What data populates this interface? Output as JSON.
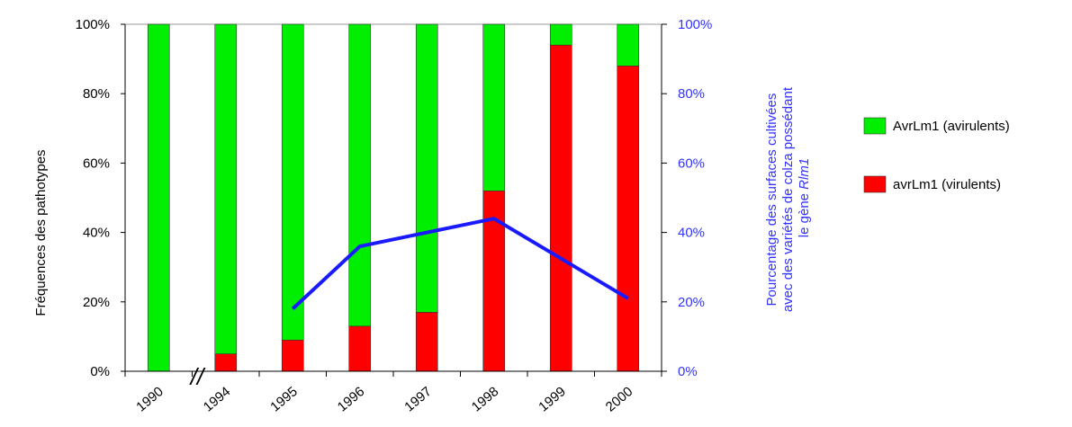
{
  "chart_data": {
    "type": "bar",
    "stacked": true,
    "categories": [
      "1990",
      "1994",
      "1995",
      "1996",
      "1997",
      "1998",
      "1999",
      "2000"
    ],
    "series": [
      {
        "name": "avrLm1 (virulents)",
        "color": "#ff0000",
        "values": [
          0,
          5,
          9,
          13,
          17,
          52,
          94,
          88
        ]
      },
      {
        "name": "AvrLm1 (avirulents)",
        "color": "#00ee00",
        "values": [
          100,
          95,
          91,
          87,
          83,
          48,
          6,
          12
        ]
      }
    ],
    "line_series": {
      "color": "#1a1aff",
      "axis": "right",
      "categories": [
        "1995",
        "1996",
        "1998",
        "2000"
      ],
      "values": [
        18,
        36,
        44,
        21
      ]
    },
    "ylabel": "Fréquences  des pathotypes",
    "y2label_lines": [
      "Pourcentage des surfaces cultivées",
      "avec des variétés de colza possédant",
      "le gène "
    ],
    "y2label_gene": "Rlm1",
    "yticks": [
      "0%",
      "20%",
      "40%",
      "60%",
      "80%",
      "100%"
    ],
    "y2ticks": [
      "0%",
      "20%",
      "40%",
      "60%",
      "80%",
      "100%"
    ],
    "ylim": [
      0,
      100
    ],
    "y2lim": [
      0,
      100
    ],
    "axis_break_marker": "//",
    "grid": false,
    "legend_position": "right",
    "right_axis_color": "#3333ff"
  }
}
